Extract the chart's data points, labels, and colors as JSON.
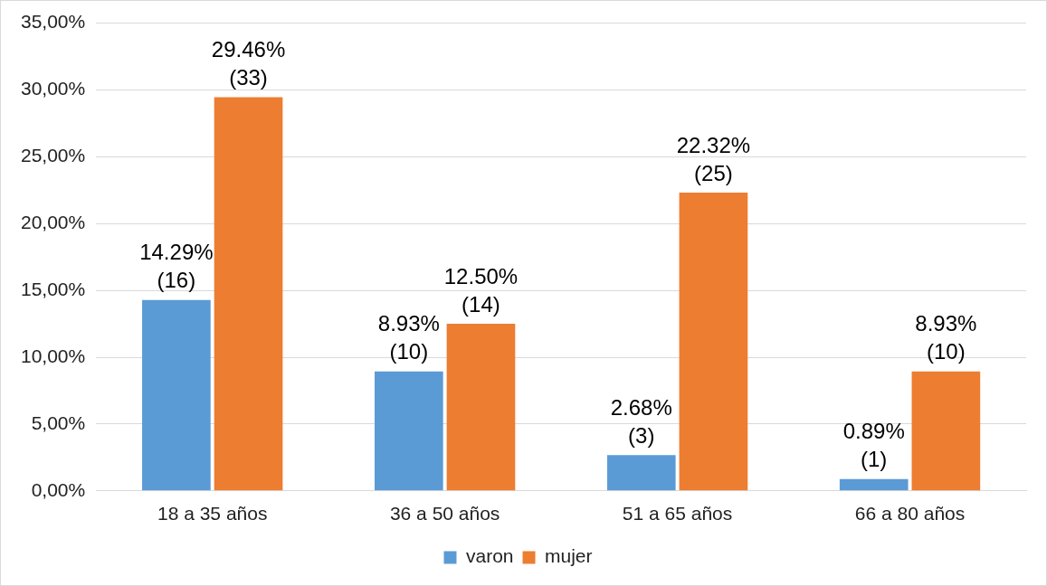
{
  "chart_data": {
    "type": "bar",
    "categories": [
      "18 a 35 años",
      "36 a 50 años",
      "51 a 65 años",
      "66 a 80 años"
    ],
    "series": [
      {
        "name": "varon",
        "color": "#5b9bd5",
        "values": [
          14.29,
          8.93,
          2.68,
          0.89
        ],
        "value_labels": [
          "14.29%\n(16)",
          "8.93%\n(10)",
          "2.68%\n(3)",
          "0.89%\n(1)"
        ]
      },
      {
        "name": "mujer",
        "color": "#ed7d31",
        "values": [
          29.46,
          12.5,
          22.32,
          8.93
        ],
        "value_labels": [
          "29.46%\n(33)",
          "12.50%\n(14)",
          "22.32%\n(25)",
          "8.93%\n(10)"
        ]
      }
    ],
    "ylim": [
      0,
      35
    ],
    "yticks": [
      {
        "value": 0,
        "label": "0,00%"
      },
      {
        "value": 5,
        "label": "5,00%"
      },
      {
        "value": 10,
        "label": "10,00%"
      },
      {
        "value": 15,
        "label": "15,00%"
      },
      {
        "value": 20,
        "label": "20,00%"
      },
      {
        "value": 25,
        "label": "25,00%"
      },
      {
        "value": 30,
        "label": "30,00%"
      },
      {
        "value": 35,
        "label": "35,00%"
      }
    ],
    "grid": "y",
    "legend": "bottom"
  }
}
